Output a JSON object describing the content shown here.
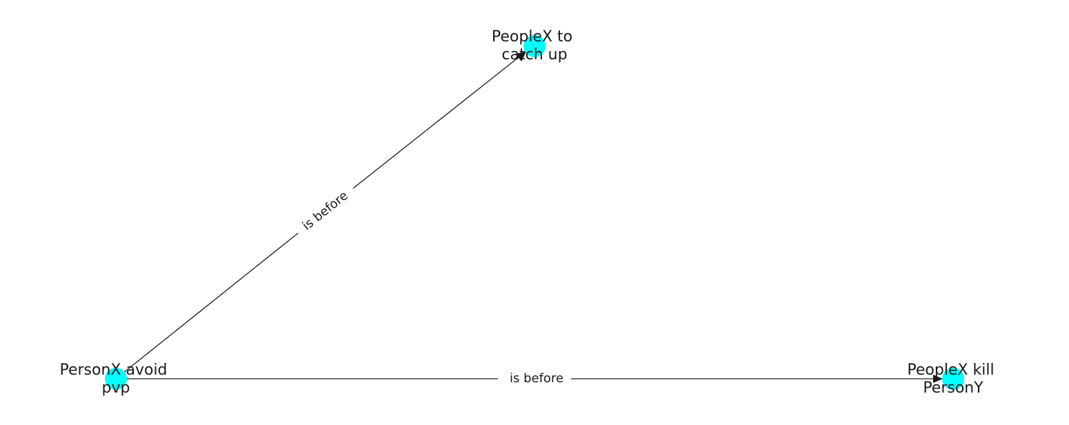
{
  "diagram": {
    "type": "directed-graph",
    "node_color": "#00ffff",
    "edge_color": "#1a1a1a",
    "nodes": [
      {
        "id": "n_catch",
        "label_lines": [
          "PeopleX to",
          "catch up"
        ]
      },
      {
        "id": "n_avoid",
        "label_lines": [
          "PersonX avoid",
          "pvp"
        ]
      },
      {
        "id": "n_kill",
        "label_lines": [
          "PeopleX kill",
          "PersonY"
        ]
      }
    ],
    "edges": [
      {
        "from": "n_avoid",
        "to": "n_catch",
        "label": "is before"
      },
      {
        "from": "n_avoid",
        "to": "n_kill",
        "label": "is before"
      }
    ]
  }
}
